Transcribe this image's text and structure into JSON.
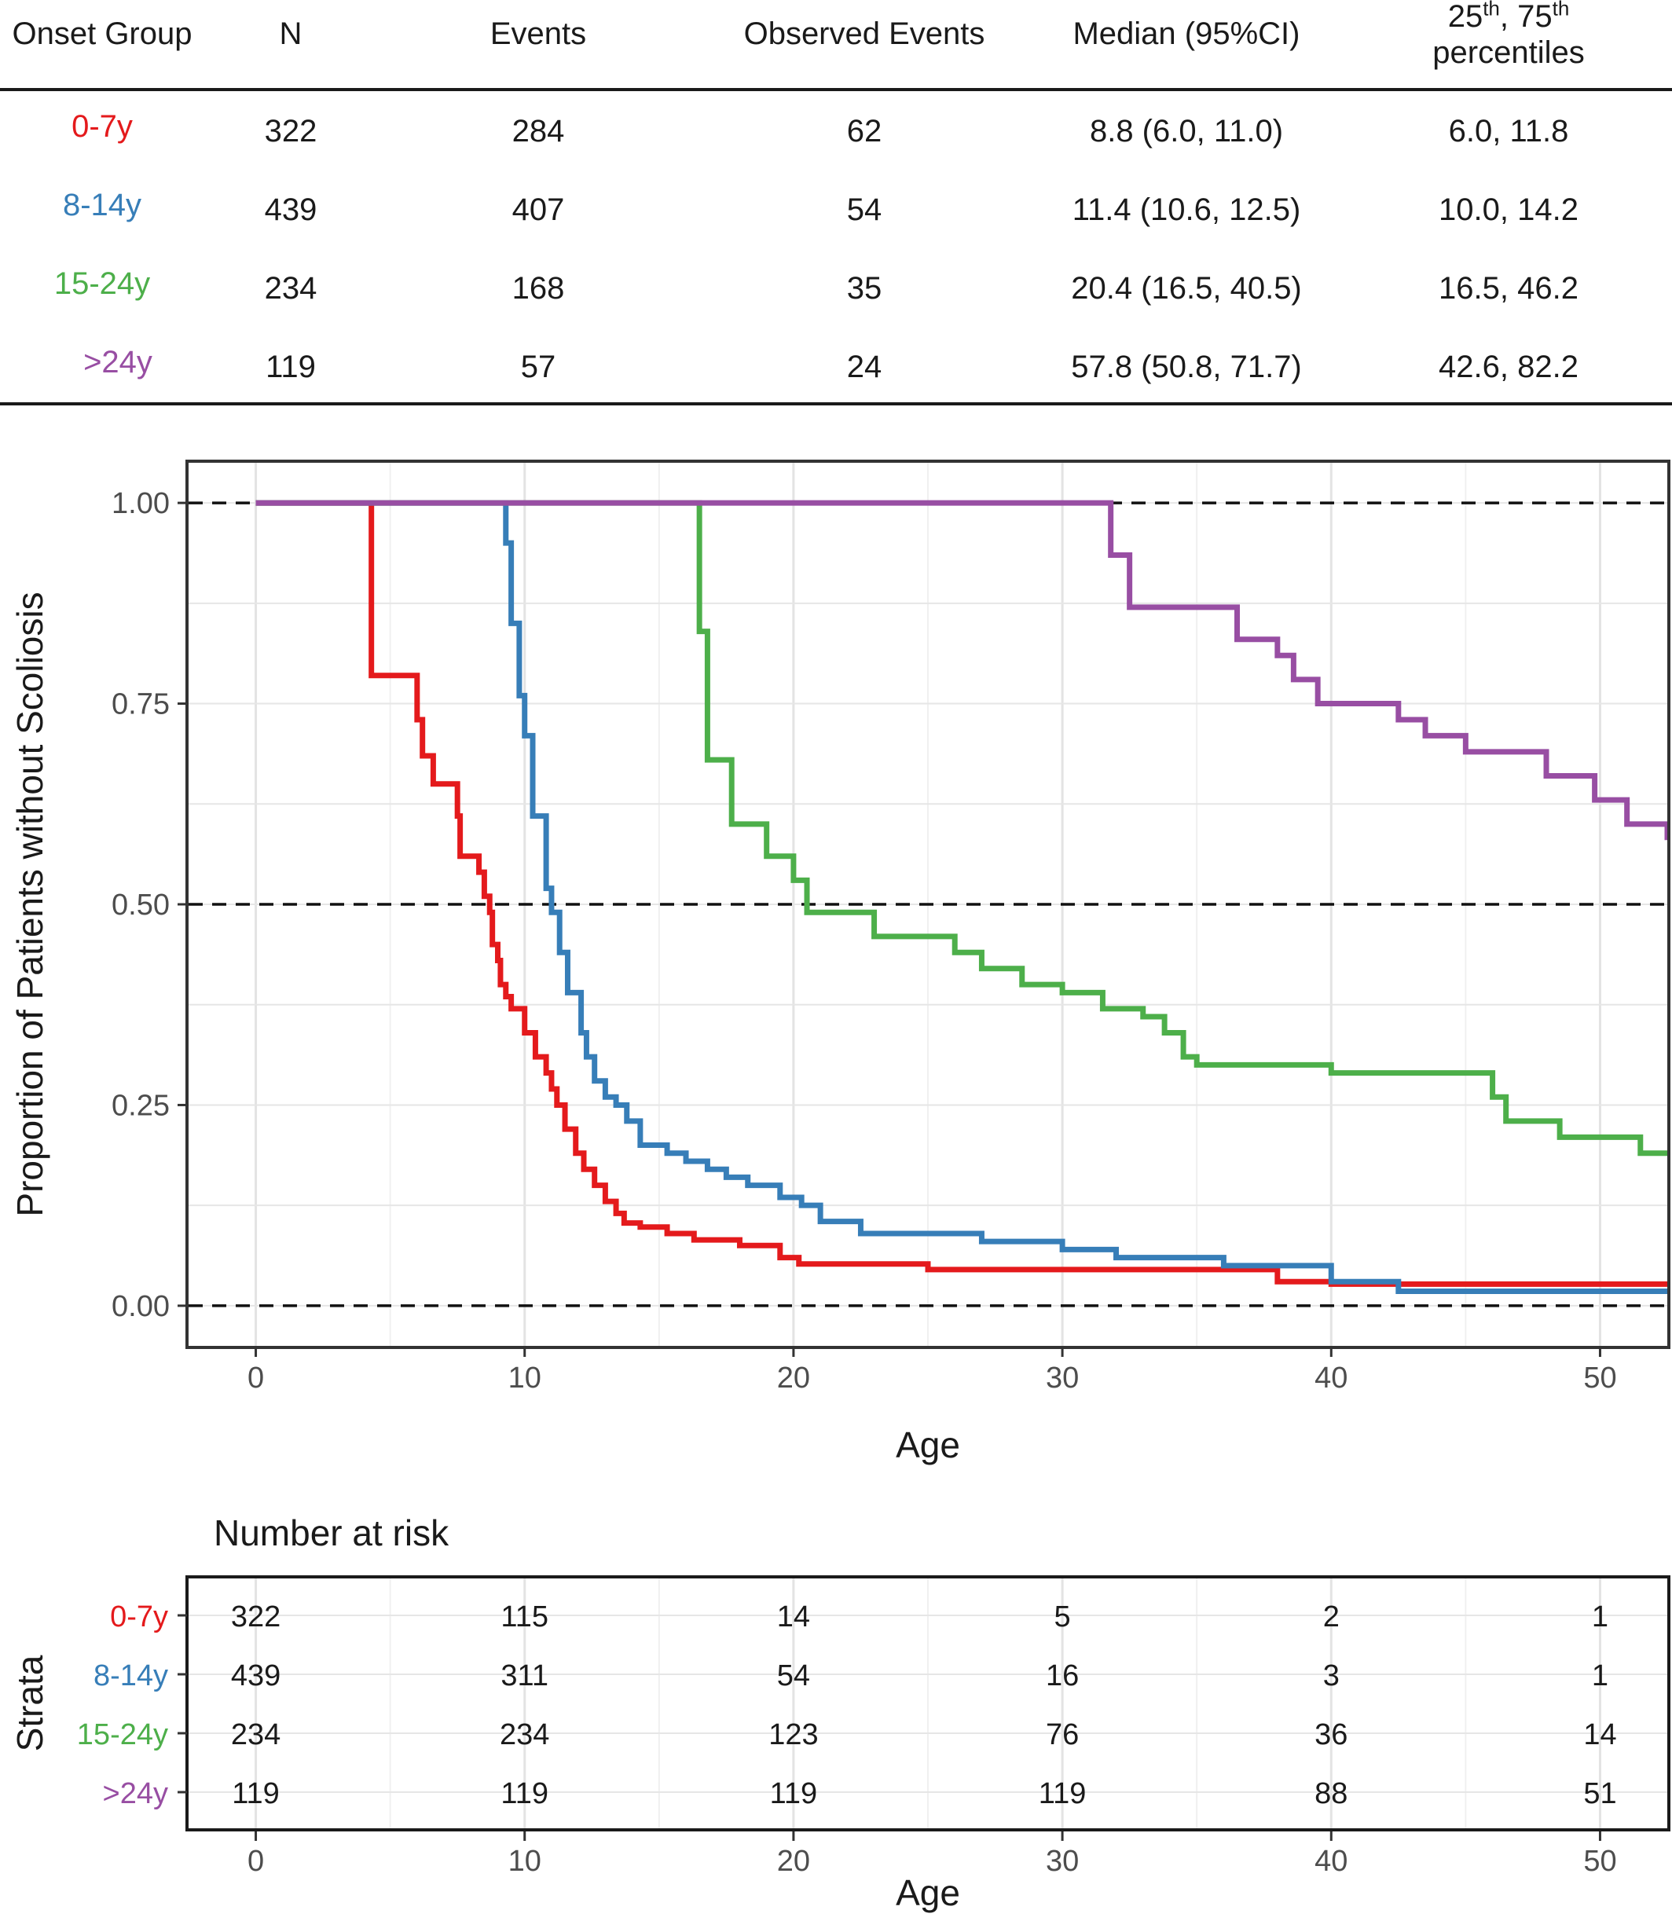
{
  "table": {
    "headers": {
      "group": "Onset Group",
      "n": "N",
      "events": "Events",
      "observed": "Observed Events",
      "median": "Median (95%CI)",
      "pct_sup1": "th",
      "pct_sup2": "th",
      "pct_line2": "percentiles"
    },
    "rows": [
      {
        "group": "0-7y",
        "n": "322",
        "events": "284",
        "observed": "62",
        "median": "8.8 (6.0, 11.0)",
        "pct": "6.0, 11.8"
      },
      {
        "group": "8-14y",
        "n": "439",
        "events": "407",
        "observed": "54",
        "median": "11.4 (10.6, 12.5)",
        "pct": "10.0, 14.2"
      },
      {
        "group": "15-24y",
        "n": "234",
        "events": "168",
        "observed": "35",
        "median": "20.4 (16.5, 40.5)",
        "pct": "16.5, 46.2"
      },
      {
        "group": ">24y",
        "n": "119",
        "events": "57",
        "observed": "24",
        "median": "57.8 (50.8, 71.7)",
        "pct": "42.6, 82.2"
      }
    ]
  },
  "colors": {
    "0-7y": "#e41a1c",
    "8-14y": "#377eb8",
    "15-24y": "#4daf4a",
    ">24y": "#984ea3"
  },
  "chart_data": [
    {
      "type": "line",
      "xlabel": "Age",
      "ylabel": "Proportion of Patients without Scoliosis",
      "xlim": [
        -2.5,
        52.5
      ],
      "ylim": [
        -0.05,
        1.05
      ],
      "xticks": [
        0,
        10,
        20,
        30,
        40,
        50
      ],
      "yticks": [
        0.0,
        0.25,
        0.5,
        0.75,
        1.0
      ],
      "ytick_labels": [
        "0.00",
        "0.25",
        "0.50",
        "0.75",
        "1.00"
      ],
      "hlines": [
        0.0,
        0.5,
        1.0
      ],
      "grid": true,
      "series": [
        {
          "name": "0-7y",
          "step": true,
          "x": [
            0,
            4.3,
            6.0,
            6.2,
            6.6,
            7.5,
            7.6,
            7.9,
            8.3,
            8.5,
            8.7,
            8.8,
            9.0,
            9.1,
            9.3,
            9.5,
            10.0,
            10.4,
            10.8,
            11.0,
            11.2,
            11.5,
            11.9,
            12.2,
            12.6,
            13.0,
            13.4,
            13.7,
            14.3,
            15.3,
            16.3,
            16.8,
            18.0,
            19.5,
            20.2,
            21.0,
            25.0,
            38.0,
            40.0,
            52.5
          ],
          "y": [
            1.0,
            0.785,
            0.73,
            0.685,
            0.65,
            0.61,
            0.56,
            0.56,
            0.54,
            0.51,
            0.49,
            0.45,
            0.43,
            0.4,
            0.385,
            0.37,
            0.34,
            0.31,
            0.29,
            0.27,
            0.25,
            0.22,
            0.19,
            0.17,
            0.15,
            0.13,
            0.115,
            0.103,
            0.098,
            0.09,
            0.082,
            0.082,
            0.075,
            0.06,
            0.052,
            0.052,
            0.045,
            0.03,
            0.027,
            0.027
          ]
        },
        {
          "name": "8-14y",
          "step": true,
          "x": [
            0,
            9.3,
            9.5,
            9.8,
            10.0,
            10.3,
            10.8,
            11.0,
            11.3,
            11.6,
            12.1,
            12.3,
            12.6,
            13.0,
            13.4,
            13.8,
            14.3,
            15.3,
            16.0,
            16.8,
            17.5,
            18.3,
            19.5,
            20.3,
            21.0,
            22.5,
            27.0,
            30.0,
            32.0,
            36.0,
            40.0,
            42.5,
            52.5
          ],
          "y": [
            1.0,
            0.95,
            0.85,
            0.76,
            0.71,
            0.61,
            0.52,
            0.49,
            0.44,
            0.39,
            0.34,
            0.31,
            0.28,
            0.26,
            0.25,
            0.23,
            0.2,
            0.19,
            0.18,
            0.17,
            0.16,
            0.15,
            0.135,
            0.125,
            0.105,
            0.09,
            0.08,
            0.07,
            0.06,
            0.05,
            0.03,
            0.018,
            0.018
          ]
        },
        {
          "name": "15-24y",
          "step": true,
          "x": [
            0,
            16.5,
            16.8,
            17.7,
            19.0,
            20.0,
            20.5,
            23.0,
            26.0,
            27.0,
            28.5,
            30.0,
            31.5,
            33.0,
            33.8,
            34.5,
            35.0,
            40.0,
            46.0,
            46.5,
            48.5,
            51.5,
            52.5
          ],
          "y": [
            1.0,
            0.84,
            0.68,
            0.6,
            0.56,
            0.53,
            0.49,
            0.46,
            0.44,
            0.42,
            0.4,
            0.39,
            0.37,
            0.36,
            0.34,
            0.31,
            0.3,
            0.29,
            0.26,
            0.23,
            0.21,
            0.19,
            0.19
          ]
        },
        {
          "name": ">24y",
          "step": true,
          "x": [
            0,
            31.8,
            32.5,
            33.0,
            36.5,
            38.0,
            38.6,
            39.5,
            41.0,
            42.5,
            43.5,
            45.0,
            48.0,
            49.8,
            51.0,
            52.5
          ],
          "y": [
            1.0,
            0.935,
            0.87,
            0.87,
            0.83,
            0.81,
            0.78,
            0.75,
            0.75,
            0.73,
            0.71,
            0.69,
            0.66,
            0.63,
            0.6,
            0.58
          ]
        }
      ]
    },
    {
      "type": "table",
      "title": "Number at risk",
      "xlabel": "Age",
      "ylabel": "Strata",
      "xticks": [
        0,
        10,
        20,
        30,
        40,
        50
      ],
      "rows": [
        {
          "name": "0-7y",
          "values": [
            322,
            115,
            14,
            5,
            2,
            1
          ]
        },
        {
          "name": "8-14y",
          "values": [
            439,
            311,
            54,
            16,
            3,
            1
          ]
        },
        {
          "name": "15-24y",
          "values": [
            234,
            234,
            123,
            76,
            36,
            14
          ]
        },
        {
          "name": ">24y",
          "values": [
            119,
            119,
            119,
            119,
            88,
            51
          ]
        }
      ]
    }
  ]
}
